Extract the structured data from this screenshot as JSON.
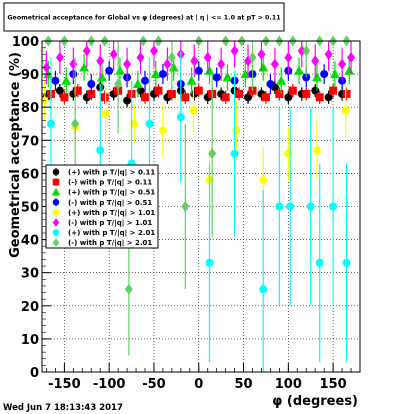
{
  "chart_data": {
    "type": "scatter",
    "title": "Geometrical acceptance for Global vs φ (degrees) at | η | <= 1.0 at pT > 0.11",
    "xlabel": "φ (degrees)",
    "ylabel": "Geometrical acceptance (%)",
    "xlim": [
      -175,
      180
    ],
    "ylim": [
      0,
      100
    ],
    "x_ticks": [
      "-150",
      "-100",
      "-50",
      "0",
      "50",
      "100",
      "150"
    ],
    "x_tick_values": [
      -150,
      -100,
      -50,
      0,
      50,
      100,
      150
    ],
    "y_ticks": [
      "0",
      "10",
      "20",
      "30",
      "40",
      "50",
      "60",
      "70",
      "80",
      "90",
      "100"
    ],
    "y_tick_values": [
      0,
      10,
      20,
      30,
      40,
      50,
      60,
      70,
      80,
      90,
      100
    ],
    "grid": true,
    "legend_position": "left-middle",
    "timestamp": "Wed Jun  7 18:13:43 2017",
    "series": [
      {
        "name": "(+) with p T/|q| > 0.11",
        "color": "#000000",
        "marker": "circle",
        "x": [
          -170,
          -155,
          -140,
          -125,
          -110,
          -95,
          -80,
          -65,
          -50,
          -35,
          -20,
          -5,
          10,
          25,
          40,
          55,
          70,
          85,
          100,
          115,
          130,
          145,
          160
        ],
        "y": [
          83,
          85,
          84,
          83,
          86,
          84,
          82,
          85,
          84,
          83,
          85,
          84,
          83,
          84,
          85,
          83,
          84,
          86,
          83,
          84,
          85,
          83,
          84
        ],
        "err": [
          2,
          2,
          2,
          2,
          2,
          2,
          2,
          2,
          2,
          2,
          2,
          2,
          2,
          2,
          2,
          2,
          2,
          2,
          2,
          2,
          2,
          2,
          2
        ]
      },
      {
        "name": "(-) with p T/|q| > 0.11",
        "color": "#ff0000",
        "marker": "square",
        "x": [
          -165,
          -150,
          -135,
          -120,
          -105,
          -90,
          -75,
          -60,
          -45,
          -30,
          -15,
          0,
          15,
          30,
          45,
          60,
          75,
          90,
          105,
          120,
          135,
          150,
          165
        ],
        "y": [
          84,
          83,
          85,
          84,
          83,
          85,
          84,
          83,
          85,
          84,
          83,
          85,
          84,
          83,
          84,
          85,
          83,
          84,
          85,
          84,
          83,
          85,
          84
        ],
        "err": [
          2,
          2,
          2,
          2,
          2,
          2,
          2,
          2,
          2,
          2,
          2,
          2,
          2,
          2,
          2,
          2,
          2,
          2,
          2,
          2,
          2,
          2,
          2
        ]
      },
      {
        "name": "(+) with p T/|q| > 0.51",
        "color": "#00dd00",
        "marker": "triangle",
        "x": [
          -168,
          -148,
          -128,
          -108,
          -88,
          -68,
          -48,
          -28,
          -8,
          12,
          32,
          52,
          72,
          92,
          112,
          132,
          152,
          168
        ],
        "y": [
          90,
          88,
          92,
          89,
          91,
          87,
          90,
          92,
          88,
          91,
          89,
          90,
          92,
          88,
          91,
          89,
          90,
          91
        ],
        "err": [
          4,
          4,
          4,
          4,
          4,
          4,
          4,
          4,
          4,
          4,
          4,
          4,
          4,
          4,
          4,
          4,
          4,
          4
        ]
      },
      {
        "name": "(-) with p T/|q| > 0.51",
        "color": "#0000ff",
        "marker": "circle",
        "x": [
          -160,
          -140,
          -120,
          -100,
          -80,
          -60,
          -40,
          -20,
          0,
          20,
          40,
          60,
          80,
          100,
          120,
          140,
          160
        ],
        "y": [
          88,
          90,
          87,
          91,
          89,
          88,
          90,
          87,
          91,
          89,
          88,
          90,
          87,
          91,
          89,
          90,
          88
        ],
        "err": [
          3,
          3,
          3,
          3,
          3,
          3,
          3,
          3,
          3,
          3,
          3,
          3,
          3,
          3,
          3,
          3,
          3
        ]
      },
      {
        "name": "(+) with p T/|q| > 1.01",
        "color": "#ffff00",
        "marker": "circle",
        "x": [
          -172,
          -138,
          -104,
          -72,
          -40,
          -6,
          12,
          42,
          72,
          100,
          132,
          164
        ],
        "y": [
          82,
          74,
          78,
          75,
          73,
          79,
          58,
          73,
          58,
          66,
          67,
          79
        ],
        "err": [
          6,
          7,
          8,
          6,
          8,
          7,
          10,
          9,
          10,
          8,
          9,
          8
        ]
      },
      {
        "name": "(-) with p T/|q| > 1.01",
        "color": "#ff00ff",
        "marker": "diamond",
        "x": [
          -170,
          -155,
          -140,
          -125,
          -110,
          -95,
          -80,
          -65,
          -50,
          -35,
          -20,
          -5,
          10,
          25,
          40,
          55,
          70,
          85,
          100,
          115,
          130,
          145,
          160,
          170
        ],
        "y": [
          92,
          95,
          93,
          97,
          94,
          96,
          93,
          95,
          97,
          93,
          96,
          94,
          95,
          93,
          97,
          94,
          96,
          93,
          95,
          97,
          94,
          96,
          93,
          95
        ],
        "err": [
          5,
          5,
          5,
          5,
          5,
          5,
          5,
          5,
          5,
          5,
          5,
          5,
          5,
          5,
          5,
          5,
          5,
          5,
          5,
          5,
          5,
          5,
          5,
          5
        ]
      },
      {
        "name": "(+) with p T/|q| > 2.01",
        "color": "#00ffff",
        "marker": "circle",
        "x": [
          -165,
          -110,
          -75,
          -55,
          -20,
          12,
          40,
          72,
          90,
          102,
          125,
          135,
          150,
          165
        ],
        "y": [
          75,
          67,
          63,
          75,
          77,
          33,
          66,
          25,
          50,
          50,
          50,
          33,
          50,
          33
        ],
        "err": [
          20,
          20,
          25,
          20,
          20,
          30,
          25,
          30,
          30,
          30,
          30,
          30,
          30,
          30
        ]
      },
      {
        "name": "(-) with p T/|q| > 2.01",
        "color": "#66cc66",
        "marker": "diamond",
        "x": [
          -168,
          -150,
          -138,
          -120,
          -105,
          -90,
          -78,
          -62,
          -45,
          -30,
          -15,
          0,
          15,
          30,
          48,
          60,
          75,
          90,
          105,
          120,
          135,
          150,
          165
        ],
        "y": [
          100,
          100,
          75,
          100,
          100,
          87,
          25,
          100,
          100,
          95,
          50,
          100,
          66,
          100,
          100,
          95,
          100,
          100,
          100,
          97,
          100,
          100,
          100
        ],
        "err": [
          0,
          0,
          20,
          0,
          0,
          15,
          20,
          0,
          0,
          10,
          25,
          0,
          25,
          0,
          0,
          10,
          0,
          0,
          0,
          8,
          0,
          0,
          0
        ]
      }
    ]
  }
}
